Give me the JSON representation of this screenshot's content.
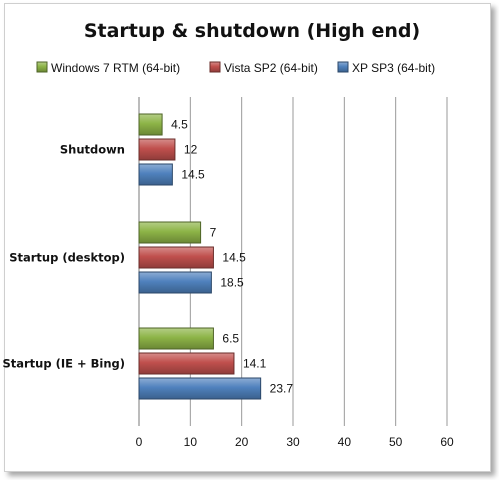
{
  "chart_data": {
    "type": "bar",
    "orientation": "horizontal",
    "title": "Startup & shutdown  (High end)",
    "categories": [
      "Shutdown",
      "Startup (desktop)",
      "Startup (IE + Bing)"
    ],
    "series": [
      {
        "name": "Windows 7 RTM  (64-bit)",
        "values": [
          4.5,
          12,
          14.5
        ],
        "color": "#8db447"
      },
      {
        "name": "Vista SP2 (64-bit)",
        "values": [
          7,
          14.5,
          18.5
        ],
        "color": "#c0504d"
      },
      {
        "name": "XP SP3 (64-bit)",
        "values": [
          6.5,
          14.1,
          23.7
        ],
        "color": "#4f81bd"
      }
    ],
    "data_labels": [
      [
        "4.5",
        "12",
        "14.5"
      ],
      [
        "7",
        "14.5",
        "18.5"
      ],
      [
        "6.5",
        "14.1",
        "23.7"
      ]
    ],
    "xlim": [
      0,
      60
    ],
    "ticks": [
      0,
      10,
      20,
      30,
      40,
      50,
      60
    ],
    "tick_labels": [
      "0",
      "10",
      "20",
      "30",
      "40",
      "50",
      "60"
    ],
    "grid": true,
    "legend_position": "top"
  }
}
